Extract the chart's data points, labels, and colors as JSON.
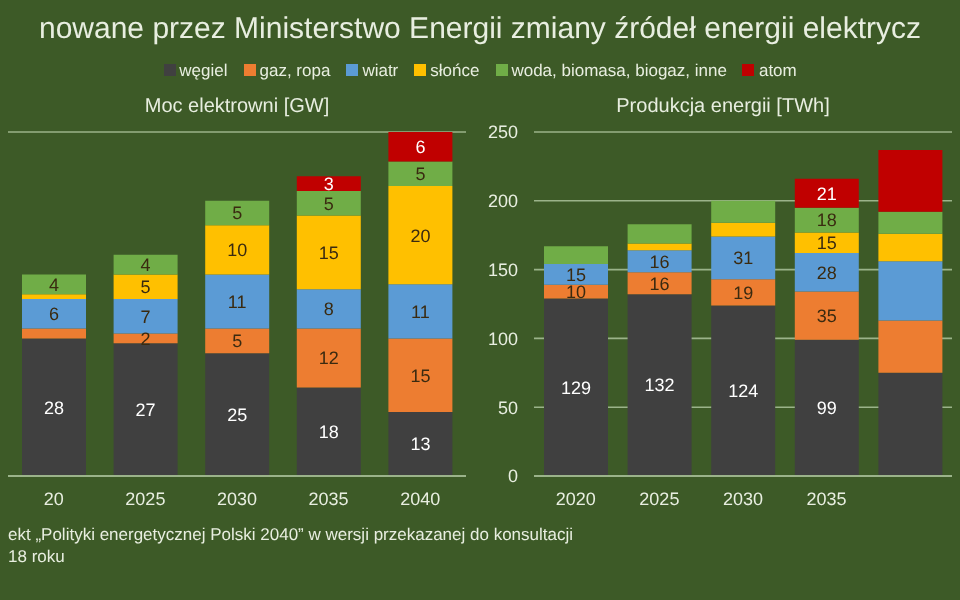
{
  "chart_data": [
    {
      "type": "bar",
      "title": "nowane przez Ministerstwo Energii zmiany źródeł energii elektrycz",
      "subtitle": "Moc elektrowni [GW]",
      "categories": [
        "20",
        "2025",
        "2030",
        "2035",
        "2040"
      ],
      "stacked": true,
      "tick_labels": "x",
      "grid": "y",
      "legend": "top",
      "annotations": [
        "ekt „Polityki energetycznej Polski 2040” w wersji przekazanej do konsultacji\n18 roku"
      ],
      "series": [
        {
          "name": "węgiel",
          "color": "#404040",
          "values": [
            28,
            27,
            25,
            18,
            13
          ],
          "value_labels": [
            "28",
            "27",
            "25",
            "18",
            "13"
          ]
        },
        {
          "name": "gaz, ropa",
          "color": "#ed7d31",
          "values": [
            2,
            2,
            5,
            12,
            15
          ],
          "value_labels": [
            null,
            "2",
            "5",
            "12",
            "15"
          ]
        },
        {
          "name": "wiatr",
          "color": "#5b9bd5",
          "values": [
            6,
            7,
            11,
            8,
            11
          ],
          "value_labels": [
            "6",
            "7",
            "11",
            "8",
            "11"
          ]
        },
        {
          "name": "słońce",
          "color": "#ffc000",
          "values": [
            1,
            5,
            10,
            15,
            20
          ],
          "value_labels": [
            null,
            "5",
            "10",
            "15",
            "20"
          ]
        },
        {
          "name": "woda, biomasa, biogaz, inne",
          "color": "#70ad47",
          "values": [
            4,
            4,
            5,
            5,
            5
          ],
          "value_labels": [
            "4",
            "4",
            "5",
            "5",
            "5"
          ]
        },
        {
          "name": "atom",
          "color": "#c00000",
          "values": [
            null,
            null,
            null,
            3,
            6
          ],
          "value_labels": [
            null,
            null,
            null,
            "3",
            "6"
          ]
        }
      ]
    },
    {
      "type": "bar",
      "subtitle": "Produkcja energii [TWh]",
      "categories": [
        "2020",
        "2025",
        "2030",
        "2035",
        null
      ],
      "stacked": true,
      "ylim": [
        0,
        250
      ],
      "yticks": [
        0,
        50,
        100,
        150,
        200,
        250
      ],
      "grid": "y",
      "series": [
        {
          "color": "#404040",
          "values": [
            129,
            132,
            124,
            99,
            75
          ],
          "value_labels": [
            "129",
            "132",
            "124",
            "99",
            null
          ]
        },
        {
          "color": "#ed7d31",
          "values": [
            10,
            16,
            19,
            35,
            38
          ],
          "value_labels": [
            "10",
            "16",
            "19",
            "35",
            null
          ]
        },
        {
          "color": "#5b9bd5",
          "values": [
            15,
            16,
            31,
            28,
            43
          ],
          "value_labels": [
            "15",
            "16",
            "31",
            "28",
            null
          ]
        },
        {
          "color": "#ffc000",
          "values": [
            null,
            5,
            10,
            15,
            20
          ],
          "value_labels": [
            null,
            null,
            null,
            "15",
            null
          ]
        },
        {
          "color": "#70ad47",
          "values": [
            13,
            14,
            16,
            18,
            16
          ],
          "value_labels": [
            null,
            null,
            null,
            "18",
            null
          ]
        },
        {
          "color": "#c00000",
          "values": [
            null,
            null,
            null,
            21,
            45
          ],
          "value_labels": [
            null,
            null,
            null,
            "21",
            null
          ]
        }
      ]
    }
  ]
}
